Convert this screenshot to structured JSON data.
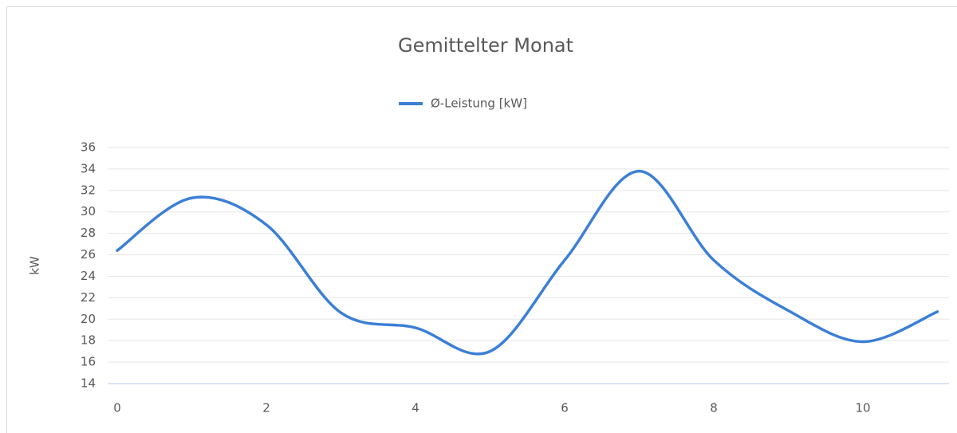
{
  "chart_data": {
    "type": "line",
    "title": "Gemittelter Monat",
    "ylabel": "kW",
    "x": [
      0,
      1,
      2,
      3,
      4,
      5,
      6,
      7,
      8,
      9,
      10,
      11
    ],
    "series": [
      {
        "name": "Ø-Leistung [kW]",
        "color": "#3c7fd6",
        "values": [
          26.4,
          31.3,
          28.8,
          20.6,
          19.2,
          17.0,
          25.5,
          33.8,
          25.5,
          20.8,
          17.9,
          20.7
        ]
      }
    ],
    "xlim": [
      0,
      11
    ],
    "xticks": [
      0,
      2,
      4,
      6,
      8,
      10
    ],
    "ylim": [
      14,
      36
    ],
    "yticks": [
      14,
      16,
      18,
      20,
      22,
      24,
      26,
      28,
      30,
      32,
      34,
      36
    ],
    "grid": true,
    "legend": "top",
    "smooth": true
  }
}
